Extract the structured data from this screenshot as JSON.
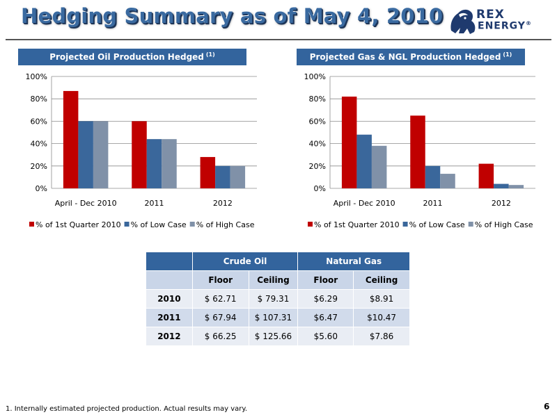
{
  "header": {
    "title": "Hedging Summary as of May 4, 2010"
  },
  "logo": {
    "line1": "REX",
    "line2": "ENERGY",
    "mark": "®",
    "icon": "lion-icon"
  },
  "panels": {
    "oil_title": "Projected Oil Production Hedged",
    "gas_title": "Projected Gas & NGL Production Hedged",
    "footnote_ref": "(1)"
  },
  "chart_data": [
    {
      "type": "bar",
      "title": "Projected Oil Production Hedged (1)",
      "categories": [
        "April - Dec 2010",
        "2011",
        "2012"
      ],
      "series": [
        {
          "name": "% of 1st Quarter 2010",
          "values": [
            87,
            60,
            28
          ]
        },
        {
          "name": "% of Low Case",
          "values": [
            60,
            44,
            20
          ]
        },
        {
          "name": "% of High Case",
          "values": [
            60,
            44,
            20
          ]
        }
      ],
      "ylim": [
        0,
        100
      ],
      "yticks": [
        "0%",
        "20%",
        "40%",
        "60%",
        "80%",
        "100%"
      ],
      "y_unit": "%",
      "grid": true,
      "legend": "bottom",
      "colors": [
        "#c00000",
        "#3a679b",
        "#8091a8"
      ]
    },
    {
      "type": "bar",
      "title": "Projected Gas & NGL Production Hedged (1)",
      "categories": [
        "April - Dec 2010",
        "2011",
        "2012"
      ],
      "series": [
        {
          "name": "% of 1st Quarter 2010",
          "values": [
            82,
            65,
            22
          ]
        },
        {
          "name": "% of Low Case",
          "values": [
            48,
            20,
            4
          ]
        },
        {
          "name": "% of High Case",
          "values": [
            38,
            13,
            3
          ]
        }
      ],
      "ylim": [
        0,
        100
      ],
      "yticks": [
        "0%",
        "20%",
        "40%",
        "60%",
        "80%",
        "100%"
      ],
      "y_unit": "%",
      "grid": true,
      "legend": "bottom",
      "colors": [
        "#c00000",
        "#3a679b",
        "#8091a8"
      ]
    }
  ],
  "table": {
    "groups": [
      "Crude Oil",
      "Natural Gas"
    ],
    "subheaders": [
      "Floor",
      "Ceiling",
      "Floor",
      "Ceiling"
    ],
    "rows": [
      {
        "year": "2010",
        "cells": [
          "$ 62.71",
          "$ 79.31",
          "$6.29",
          "$8.91"
        ]
      },
      {
        "year": "2011",
        "cells": [
          "$ 67.94",
          "$ 107.31",
          "$6.47",
          "$10.47"
        ]
      },
      {
        "year": "2012",
        "cells": [
          "$ 66.25",
          "$ 125.66",
          "$5.60",
          "$7.86"
        ]
      }
    ]
  },
  "footer": {
    "footnote": "1. Internally estimated projected production. Actual results may vary.",
    "page": "6"
  }
}
